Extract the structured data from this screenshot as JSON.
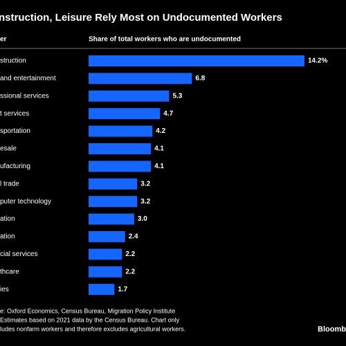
{
  "chart_data": {
    "type": "bar",
    "orientation": "horizontal",
    "title": "nstruction, Leisure Rely Most on Undocumented Workers",
    "category_header": "er",
    "value_header": "Share of total workers who are undocumented",
    "categories": [
      "struction",
      "and entertainment",
      "ssional services",
      "t services",
      "sportation",
      "esale",
      "ufacturing",
      "l trade",
      "puter technology",
      "ation",
      "ation",
      "cial services",
      "thcare",
      "ies"
    ],
    "values": [
      14.2,
      6.8,
      5.3,
      4.7,
      4.2,
      4.1,
      4.1,
      3.2,
      3.2,
      3.0,
      2.4,
      2.2,
      2.2,
      1.7
    ],
    "value_labels": [
      "14.2%",
      "6.8",
      "5.3",
      "4.7",
      "4.2",
      "4.1",
      "4.1",
      "3.2",
      "3.2",
      "3.0",
      "2.4",
      "2.2",
      "2.2",
      "1.7"
    ],
    "color": "#1565ff",
    "notes": [
      "e: Oxford Economics, Census Bureau, Migration Policy Institute",
      "Estimates based on 2021 data by the Census Bureau. Chart only",
      "ludes nonfarm workers and therefore excludes agricultural workers."
    ],
    "source_brand": "Bloomb"
  }
}
